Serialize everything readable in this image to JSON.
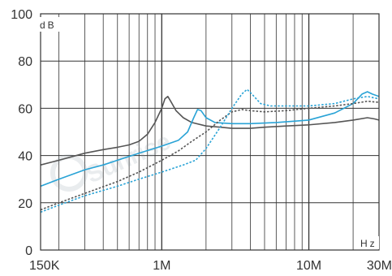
{
  "chart_data": {
    "type": "line",
    "title": "",
    "xlabel": "Hz",
    "ylabel": "dB",
    "x_scale": "log",
    "xlim": [
      150000,
      30000000
    ],
    "ylim": [
      0,
      100
    ],
    "grid": true,
    "x_tick_labels": [
      {
        "value": 150000,
        "label": "150K"
      },
      {
        "value": 1000000,
        "label": "1M"
      },
      {
        "value": 10000000,
        "label": "10M"
      },
      {
        "value": 30000000,
        "label": "30M"
      }
    ],
    "y_ticks": [
      0,
      20,
      40,
      60,
      80,
      100
    ],
    "series": [
      {
        "color": "#555555",
        "style": "solid",
        "points": [
          [
            150000,
            36
          ],
          [
            200000,
            38
          ],
          [
            300000,
            41
          ],
          [
            400000,
            42.5
          ],
          [
            500000,
            43.5
          ],
          [
            600000,
            44.5
          ],
          [
            700000,
            46
          ],
          [
            800000,
            49
          ],
          [
            900000,
            54
          ],
          [
            1000000,
            60
          ],
          [
            1050000,
            64
          ],
          [
            1100000,
            65
          ],
          [
            1150000,
            63
          ],
          [
            1250000,
            59
          ],
          [
            1400000,
            56
          ],
          [
            1600000,
            54
          ],
          [
            2000000,
            52.5
          ],
          [
            2500000,
            52
          ],
          [
            3000000,
            51.5
          ],
          [
            4000000,
            51.5
          ],
          [
            5000000,
            52
          ],
          [
            7000000,
            52.5
          ],
          [
            10000000,
            53
          ],
          [
            15000000,
            54
          ],
          [
            20000000,
            55
          ],
          [
            25000000,
            56
          ],
          [
            28000000,
            55.5
          ],
          [
            30000000,
            55
          ]
        ]
      },
      {
        "color": "#29a3d6",
        "style": "solid",
        "points": [
          [
            150000,
            27
          ],
          [
            200000,
            30
          ],
          [
            300000,
            34
          ],
          [
            400000,
            36
          ],
          [
            500000,
            38
          ],
          [
            700000,
            41
          ],
          [
            1000000,
            44
          ],
          [
            1300000,
            46.5
          ],
          [
            1500000,
            50
          ],
          [
            1650000,
            56
          ],
          [
            1750000,
            59.5
          ],
          [
            1850000,
            59
          ],
          [
            2000000,
            56
          ],
          [
            2300000,
            54
          ],
          [
            3000000,
            53.5
          ],
          [
            4000000,
            53.5
          ],
          [
            6000000,
            54
          ],
          [
            10000000,
            55
          ],
          [
            15000000,
            58
          ],
          [
            20000000,
            62
          ],
          [
            23000000,
            66
          ],
          [
            25000000,
            67
          ],
          [
            27000000,
            66
          ],
          [
            30000000,
            65
          ]
        ]
      },
      {
        "color": "#555555",
        "style": "dashed",
        "points": [
          [
            150000,
            17
          ],
          [
            200000,
            20
          ],
          [
            300000,
            24
          ],
          [
            500000,
            29
          ],
          [
            700000,
            33
          ],
          [
            1000000,
            38
          ],
          [
            1300000,
            42
          ],
          [
            1600000,
            46
          ],
          [
            2000000,
            50
          ],
          [
            2500000,
            55
          ],
          [
            3000000,
            58.5
          ],
          [
            3500000,
            59.5
          ],
          [
            4000000,
            59
          ],
          [
            5000000,
            58.5
          ],
          [
            7000000,
            59
          ],
          [
            10000000,
            60
          ],
          [
            15000000,
            61
          ],
          [
            20000000,
            62
          ],
          [
            25000000,
            63
          ],
          [
            30000000,
            62.5
          ]
        ]
      },
      {
        "color": "#29a3d6",
        "style": "dashed",
        "points": [
          [
            150000,
            16
          ],
          [
            200000,
            19
          ],
          [
            300000,
            23
          ],
          [
            500000,
            27
          ],
          [
            700000,
            30
          ],
          [
            1000000,
            33
          ],
          [
            1400000,
            36
          ],
          [
            1700000,
            38
          ],
          [
            2000000,
            43
          ],
          [
            2500000,
            52
          ],
          [
            3000000,
            60
          ],
          [
            3500000,
            66
          ],
          [
            3800000,
            68
          ],
          [
            4100000,
            66
          ],
          [
            4700000,
            62
          ],
          [
            5500000,
            61
          ],
          [
            7000000,
            61
          ],
          [
            10000000,
            61
          ],
          [
            15000000,
            62
          ],
          [
            20000000,
            64
          ],
          [
            25000000,
            65
          ],
          [
            30000000,
            64
          ]
        ]
      }
    ]
  }
}
